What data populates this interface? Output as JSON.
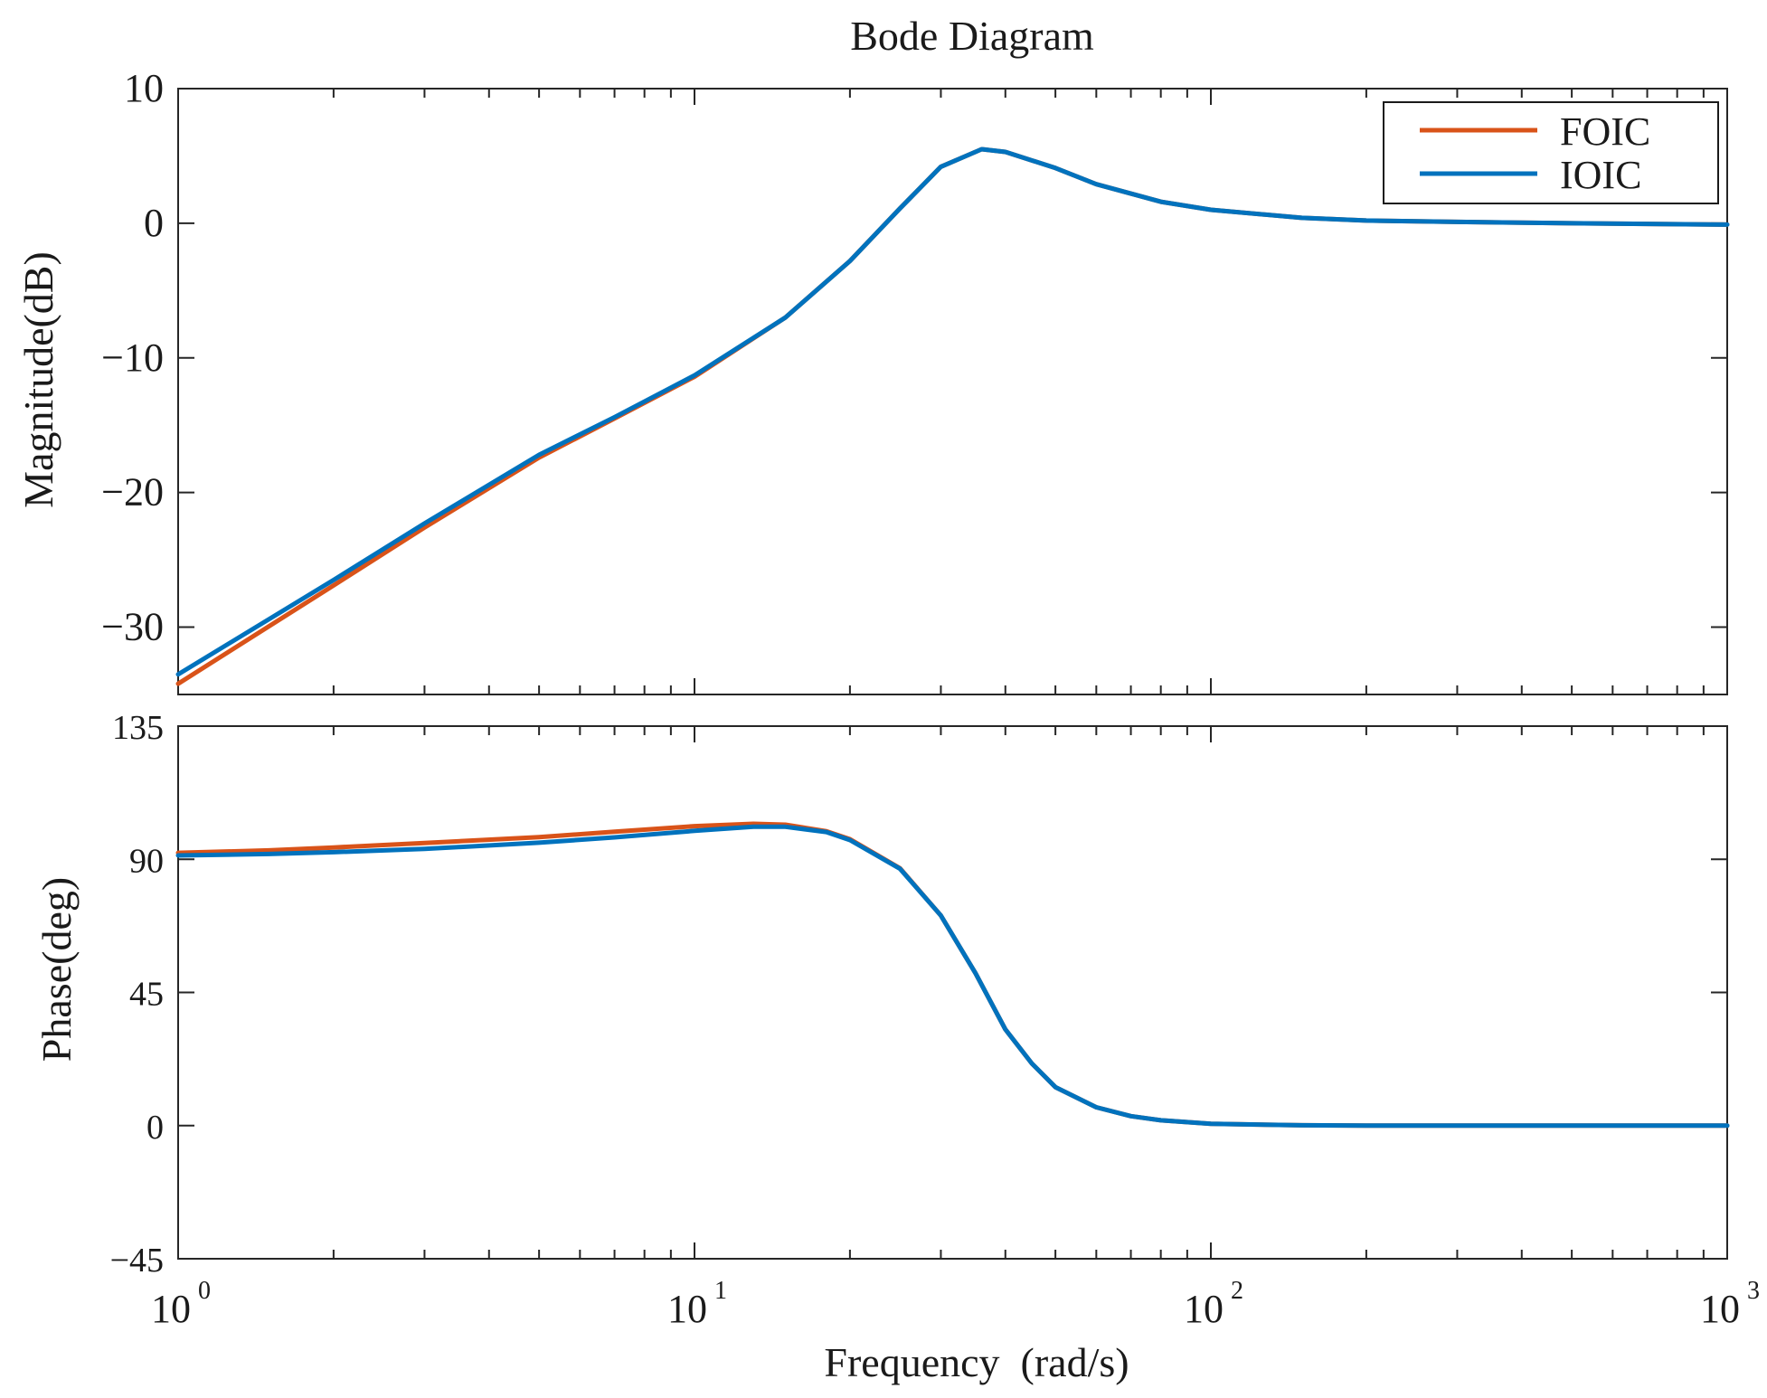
{
  "chart_data": {
    "type": "line",
    "title": "Bode Diagram",
    "xlabel": "Frequency  (rad/s)",
    "xscale": "log",
    "xlim": [
      1,
      1000
    ],
    "x_ticks": [
      {
        "base": "10",
        "exp": "0"
      },
      {
        "base": "10",
        "exp": "1"
      },
      {
        "base": "10",
        "exp": "2"
      },
      {
        "base": "10",
        "exp": "3"
      }
    ],
    "legend": {
      "position": "top-right",
      "entries": [
        {
          "name": "FOIC",
          "color": "#d95319"
        },
        {
          "name": "IOIC",
          "color": "#0072bd"
        }
      ]
    },
    "panels": [
      {
        "id": "magnitude",
        "ylabel": "Magnitude(dB)",
        "ylim": [
          -35,
          10
        ],
        "yticks": [
          10,
          0,
          -10,
          -20,
          -30
        ],
        "ytick_labels": [
          "10",
          "0",
          "−10",
          "−20",
          "−30"
        ],
        "series": [
          {
            "name": "FOIC",
            "color": "#d95319",
            "x": [
              1,
              2,
              3,
              5,
              7,
              10,
              15,
              20,
              25,
              30,
              36,
              40,
              50,
              60,
              80,
              100,
              150,
              200,
              300,
              500,
              1000
            ],
            "values": [
              -34.2,
              -26.9,
              -22.6,
              -17.4,
              -14.5,
              -11.4,
              -7.0,
              -2.8,
              1.1,
              4.2,
              5.5,
              5.3,
              4.1,
              2.9,
              1.6,
              1.0,
              0.4,
              0.2,
              0.1,
              0.0,
              -0.1
            ]
          },
          {
            "name": "IOIC",
            "color": "#0072bd",
            "x": [
              1,
              2,
              3,
              5,
              7,
              10,
              15,
              20,
              25,
              30,
              36,
              40,
              50,
              60,
              80,
              100,
              150,
              200,
              300,
              500,
              1000
            ],
            "values": [
              -33.5,
              -26.5,
              -22.3,
              -17.2,
              -14.4,
              -11.3,
              -7.0,
              -2.8,
              1.1,
              4.2,
              5.5,
              5.3,
              4.1,
              2.9,
              1.6,
              1.0,
              0.4,
              0.2,
              0.1,
              0.0,
              -0.1
            ]
          }
        ]
      },
      {
        "id": "phase",
        "ylabel": "Phase(deg)",
        "ylim": [
          -45,
          135
        ],
        "yticks": [
          135,
          90,
          45,
          0,
          -45
        ],
        "ytick_labels": [
          "135",
          "90",
          "45",
          "0",
          "−45"
        ],
        "series": [
          {
            "name": "FOIC",
            "color": "#d95319",
            "x": [
              1,
              1.5,
              2,
              3,
              5,
              7,
              10,
              13,
              15,
              18,
              20,
              25,
              30,
              35,
              40,
              45,
              50,
              60,
              70,
              80,
              100,
              150,
              200,
              300,
              500,
              1000
            ],
            "values": [
              92.2,
              93.0,
              94.0,
              95.5,
              97.5,
              99.3,
              101.2,
              102.0,
              101.7,
              99.5,
              96.8,
              87.0,
              71.0,
              51.5,
              32.5,
              21.0,
              13.0,
              6.2,
              3.2,
              1.8,
              0.6,
              0.1,
              0.0,
              0.0,
              0.0,
              0.0
            ]
          },
          {
            "name": "IOIC",
            "color": "#0072bd",
            "x": [
              1,
              1.5,
              2,
              3,
              5,
              7,
              10,
              13,
              15,
              18,
              20,
              25,
              30,
              35,
              40,
              45,
              50,
              60,
              70,
              80,
              100,
              150,
              200,
              300,
              500,
              1000
            ],
            "values": [
              91.3,
              91.8,
              92.4,
              93.5,
              95.6,
              97.4,
              99.6,
              101.0,
              101.0,
              99.2,
              96.5,
              86.8,
              71.0,
              51.5,
              32.5,
              21.0,
              13.0,
              6.2,
              3.2,
              1.8,
              0.6,
              0.1,
              0.0,
              0.0,
              0.0,
              0.0
            ]
          }
        ]
      }
    ]
  }
}
